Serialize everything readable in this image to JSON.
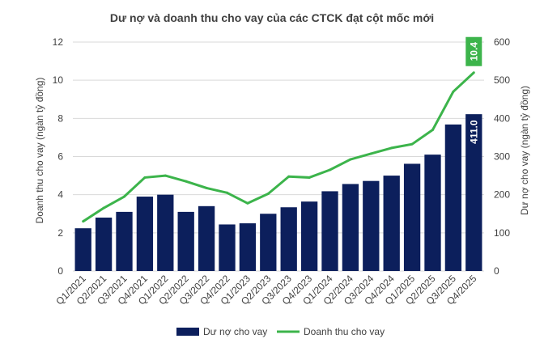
{
  "chart_data": {
    "type": "bar",
    "title": "Dư nợ và doanh thu cho vay của các CTCK đạt cột mốc mới",
    "categories": [
      "Q1/2021",
      "Q2/2021",
      "Q3/2021",
      "Q4/2021",
      "Q1/2022",
      "Q2/2022",
      "Q3/2022",
      "Q4/2022",
      "Q1/2023",
      "Q2/2023",
      "Q3/2023",
      "Q4/2023",
      "Q1/2024",
      "Q2/2024",
      "Q3/2024",
      "Q4/2024",
      "Q1/2025",
      "Q2/2025",
      "Q3/2025",
      "Q4/2025"
    ],
    "series": [
      {
        "name": "Dư nợ cho vay",
        "kind": "bar",
        "axis": "right",
        "color": "#0c1f5c",
        "values": [
          112,
          140,
          155,
          195,
          200,
          155,
          170,
          122,
          125,
          150,
          167,
          182,
          209,
          228,
          236,
          250,
          281,
          305,
          384,
          411
        ],
        "end_label": "411.0"
      },
      {
        "name": "Doanh thu cho vay",
        "kind": "line",
        "axis": "left",
        "color": "#3cb44b",
        "values": [
          2.6,
          3.3,
          3.9,
          4.9,
          5.0,
          4.7,
          4.35,
          4.1,
          3.55,
          4.05,
          4.95,
          4.9,
          5.3,
          5.85,
          6.15,
          6.45,
          6.65,
          7.4,
          9.4,
          10.4
        ],
        "end_label": "10.4"
      }
    ],
    "ylabel": "Doanh thu cho vay (ngàn tỷ đồng)",
    "ylabel_right": "Dư nợ cho vay (ngàn tỷ đồng)",
    "ylim": [
      0,
      12
    ],
    "ylim_right": [
      0,
      600
    ],
    "yticks": [
      "0",
      "2",
      "4",
      "6",
      "8",
      "10",
      "12"
    ],
    "yticks_right": [
      "0",
      "100",
      "200",
      "300",
      "400",
      "500",
      "600"
    ],
    "grid": true,
    "legend_position": "bottom"
  }
}
